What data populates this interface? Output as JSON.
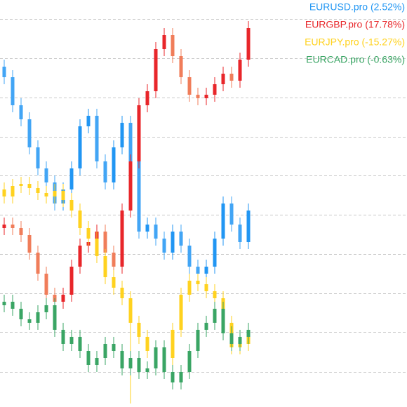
{
  "chart_data": {
    "type": "candlestick",
    "categories": [
      null,
      null,
      null,
      null,
      null,
      null,
      null,
      null,
      null,
      null,
      null,
      null,
      null,
      null,
      null,
      null,
      null,
      null,
      null,
      null,
      null,
      null,
      null,
      null,
      null,
      null,
      null,
      null,
      null,
      null
    ],
    "ylim": [
      0,
      580
    ],
    "yticks": [
      50,
      107,
      162,
      218,
      274,
      330,
      385,
      441,
      497,
      553
    ],
    "grid": true,
    "legend": "top-right",
    "series": [
      {
        "name": "EURUSD.pro (2.52%)",
        "color": "#2196f3",
        "down_color": "#42a5f5",
        "open": [
          485,
          470,
          430,
          410,
          370,
          340,
          320,
          290,
          310,
          340,
          400,
          415,
          350,
          320,
          370,
          405,
          350,
          250,
          260,
          240,
          220,
          250,
          230,
          200,
          190,
          200,
          240,
          290,
          260,
          235
        ],
        "high": [
          495,
          480,
          440,
          420,
          380,
          350,
          330,
          320,
          350,
          410,
          425,
          425,
          360,
          380,
          415,
          415,
          360,
          270,
          270,
          250,
          260,
          260,
          240,
          210,
          210,
          250,
          300,
          300,
          270,
          290
        ],
        "low": [
          460,
          420,
          400,
          360,
          330,
          310,
          280,
          280,
          300,
          330,
          390,
          340,
          310,
          310,
          360,
          340,
          240,
          240,
          230,
          210,
          210,
          220,
          190,
          180,
          180,
          190,
          230,
          250,
          225,
          225
        ],
        "close": [
          470,
          430,
          410,
          370,
          340,
          320,
          290,
          310,
          340,
          400,
          415,
          350,
          320,
          370,
          405,
          350,
          250,
          260,
          240,
          220,
          250,
          230,
          200,
          190,
          200,
          240,
          290,
          260,
          235,
          280
        ]
      },
      {
        "name": "EURGBP.pro (17.78%)",
        "color": "#e8262a",
        "down_color": "#f07d5a",
        "open": [
          255,
          260,
          255,
          245,
          220,
          190,
          160,
          150,
          160,
          200,
          230,
          235,
          250,
          220,
          200,
          280,
          350,
          430,
          450,
          510,
          530,
          500,
          470,
          445,
          440,
          445,
          460,
          475,
          465,
          495
        ],
        "high": [
          270,
          270,
          265,
          255,
          230,
          200,
          170,
          170,
          210,
          240,
          245,
          260,
          260,
          230,
          290,
          360,
          440,
          460,
          520,
          540,
          540,
          510,
          480,
          455,
          455,
          470,
          485,
          485,
          505,
          550
        ],
        "low": [
          245,
          245,
          235,
          210,
          180,
          150,
          140,
          140,
          150,
          190,
          220,
          225,
          210,
          190,
          190,
          270,
          340,
          420,
          440,
          500,
          490,
          460,
          435,
          430,
          430,
          435,
          450,
          455,
          455,
          485
        ],
        "close": [
          260,
          255,
          245,
          220,
          190,
          160,
          150,
          160,
          200,
          230,
          235,
          250,
          220,
          200,
          280,
          350,
          430,
          450,
          510,
          530,
          500,
          470,
          445,
          440,
          445,
          460,
          475,
          465,
          495,
          540
        ]
      },
      {
        "name": "EURJPY.pro (-15.27%)",
        "color": "#ffd21f",
        "down_color": "#ffd21f",
        "open": [
          310,
          300,
          315,
          318,
          312,
          305,
          300,
          308,
          295,
          280,
          255,
          240,
          215,
          185,
          170,
          155,
          120,
          100,
          80,
          65,
          70,
          110,
          160,
          180,
          175,
          165,
          155,
          120,
          85,
          90
        ],
        "high": [
          320,
          325,
          328,
          328,
          322,
          315,
          318,
          318,
          305,
          290,
          265,
          250,
          225,
          195,
          180,
          165,
          130,
          110,
          90,
          80,
          120,
          170,
          190,
          190,
          185,
          175,
          165,
          130,
          100,
          110
        ],
        "low": [
          290,
          290,
          305,
          302,
          295,
          290,
          290,
          285,
          270,
          245,
          230,
          205,
          175,
          160,
          145,
          5,
          90,
          70,
          55,
          55,
          60,
          100,
          150,
          165,
          155,
          145,
          110,
          75,
          75,
          80
        ],
        "close": [
          300,
          315,
          318,
          312,
          305,
          300,
          308,
          295,
          280,
          255,
          240,
          215,
          185,
          170,
          155,
          120,
          100,
          80,
          65,
          70,
          110,
          160,
          180,
          175,
          165,
          155,
          120,
          85,
          90,
          100
        ]
      },
      {
        "name": "EURCAD.pro (-0.63%)",
        "color": "#3aa564",
        "down_color": "#3aa564",
        "open": [
          145,
          150,
          140,
          125,
          120,
          135,
          145,
          110,
          90,
          100,
          80,
          60,
          70,
          90,
          80,
          55,
          70,
          50,
          55,
          85,
          50,
          35,
          50,
          80,
          110,
          120,
          140,
          105,
          90,
          100
        ],
        "high": [
          160,
          160,
          150,
          135,
          145,
          155,
          155,
          120,
          110,
          110,
          90,
          80,
          100,
          100,
          90,
          80,
          80,
          65,
          95,
          95,
          60,
          60,
          90,
          120,
          130,
          150,
          150,
          115,
          110,
          120
        ],
        "low": [
          135,
          130,
          115,
          110,
          110,
          125,
          100,
          80,
          80,
          70,
          50,
          50,
          60,
          70,
          45,
          45,
          40,
          40,
          45,
          40,
          25,
          25,
          40,
          70,
          100,
          110,
          95,
          80,
          80,
          90
        ],
        "close": [
          150,
          140,
          125,
          120,
          135,
          145,
          110,
          90,
          100,
          80,
          60,
          70,
          90,
          80,
          55,
          70,
          50,
          55,
          85,
          50,
          35,
          50,
          80,
          110,
          120,
          140,
          105,
          90,
          100,
          110
        ]
      }
    ]
  }
}
